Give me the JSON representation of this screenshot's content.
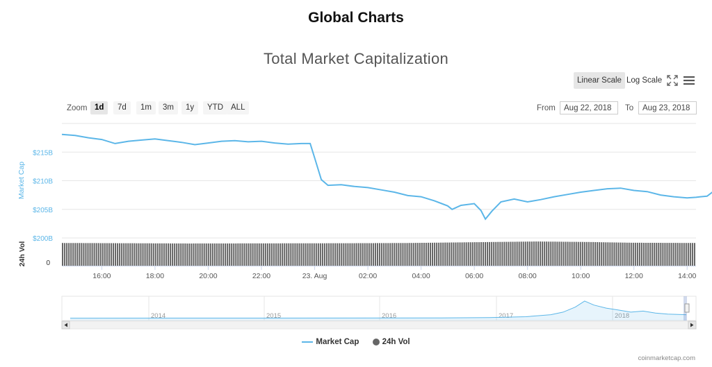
{
  "page": {
    "title": "Global Charts",
    "credits": "coinmarketcap.com"
  },
  "toolbar": {
    "linear_scale": "Linear Scale",
    "log_scale": "Log Scale",
    "zoom_label": "Zoom",
    "zoom_options": [
      "1d",
      "7d",
      "1m",
      "3m",
      "1y",
      "YTD",
      "ALL"
    ],
    "zoom_selected": "1d",
    "from_label": "From",
    "from_value": "Aug 22, 2018",
    "to_label": "To",
    "to_value": "Aug 23, 2018"
  },
  "chart_data": {
    "type": "line",
    "title": "Total Market Capitalization",
    "ylabel": "Market Cap",
    "ylabel2": "24h Vol",
    "y_unit": "$B",
    "ylim": [
      200,
      220
    ],
    "y_ticks": [
      200,
      205,
      210,
      215
    ],
    "y_tick_labels": [
      "$200B",
      "$205B",
      "$210B",
      "$215B"
    ],
    "vol_tick_labels": [
      "0"
    ],
    "xlim": [
      "Aug 22, 2018 14:30",
      "Aug 23, 2018 14:20"
    ],
    "x_tick_labels": [
      "16:00",
      "18:00",
      "20:00",
      "22:00",
      "23. Aug",
      "02:00",
      "04:00",
      "06:00",
      "08:00",
      "10:00",
      "12:00",
      "14:00"
    ],
    "series": [
      {
        "name": "Market Cap",
        "color": "#5bb6e8",
        "points": [
          [
            "14:30",
            218.1
          ],
          [
            "15:00",
            217.9
          ],
          [
            "15:30",
            217.5
          ],
          [
            "16:00",
            217.2
          ],
          [
            "16:30",
            216.5
          ],
          [
            "17:00",
            216.9
          ],
          [
            "17:30",
            217.1
          ],
          [
            "18:00",
            217.3
          ],
          [
            "18:30",
            217.0
          ],
          [
            "19:00",
            216.7
          ],
          [
            "19:30",
            216.3
          ],
          [
            "20:00",
            216.6
          ],
          [
            "20:30",
            216.9
          ],
          [
            "21:00",
            217.0
          ],
          [
            "21:30",
            216.8
          ],
          [
            "22:00",
            216.9
          ],
          [
            "22:30",
            216.6
          ],
          [
            "23:00",
            216.4
          ],
          [
            "23:30",
            216.5
          ],
          [
            "23:50",
            216.5
          ],
          [
            "24:00",
            214.0
          ],
          [
            "24:15",
            210.2
          ],
          [
            "24:30",
            209.2
          ],
          [
            "25:00",
            209.3
          ],
          [
            "25:30",
            209.0
          ],
          [
            "26:00",
            208.8
          ],
          [
            "26:30",
            208.4
          ],
          [
            "27:00",
            208.0
          ],
          [
            "27:30",
            207.4
          ],
          [
            "28:00",
            207.2
          ],
          [
            "28:30",
            206.5
          ],
          [
            "29:00",
            205.6
          ],
          [
            "29:10",
            205.0
          ],
          [
            "29:30",
            205.7
          ],
          [
            "30:00",
            206.0
          ],
          [
            "30:15",
            204.8
          ],
          [
            "30:25",
            203.3
          ],
          [
            "30:40",
            204.7
          ],
          [
            "31:00",
            206.3
          ],
          [
            "31:30",
            206.8
          ],
          [
            "32:00",
            206.3
          ],
          [
            "32:30",
            206.7
          ],
          [
            "33:00",
            207.2
          ],
          [
            "33:30",
            207.6
          ],
          [
            "34:00",
            208.0
          ],
          [
            "34:30",
            208.3
          ],
          [
            "35:00",
            208.6
          ],
          [
            "35:30",
            208.7
          ],
          [
            "36:00",
            208.3
          ],
          [
            "36:30",
            208.1
          ],
          [
            "37:00",
            207.5
          ],
          [
            "37:30",
            207.2
          ],
          [
            "38:00",
            207.0
          ],
          [
            "38:30",
            207.2
          ],
          [
            "38:45",
            207.3
          ],
          [
            "39:00",
            208.2
          ],
          [
            "38:20",
            207.1
          ]
        ]
      },
      {
        "name": "24h Vol",
        "color": "#666666",
        "vol_level_profile": [
          [
            0,
            0.91
          ],
          [
            0.2,
            0.89
          ],
          [
            0.45,
            0.9
          ],
          [
            0.55,
            0.91
          ],
          [
            0.65,
            0.94
          ],
          [
            0.75,
            0.97
          ],
          [
            0.83,
            0.95
          ],
          [
            0.9,
            0.92
          ],
          [
            1,
            0.91
          ]
        ]
      }
    ],
    "navigator": {
      "x_tick_labels": [
        "2014",
        "2015",
        "2016",
        "2017",
        "2018"
      ],
      "series_shape": [
        [
          0,
          0.05
        ],
        [
          0.6,
          0.06
        ],
        [
          0.68,
          0.08
        ],
        [
          0.74,
          0.12
        ],
        [
          0.78,
          0.22
        ],
        [
          0.8,
          0.35
        ],
        [
          0.82,
          0.6
        ],
        [
          0.835,
          0.9
        ],
        [
          0.85,
          0.7
        ],
        [
          0.87,
          0.55
        ],
        [
          0.89,
          0.45
        ],
        [
          0.91,
          0.35
        ],
        [
          0.93,
          0.4
        ],
        [
          0.95,
          0.3
        ],
        [
          0.97,
          0.25
        ],
        [
          1,
          0.22
        ]
      ]
    },
    "legend_position": "bottom-center",
    "grid": true
  }
}
